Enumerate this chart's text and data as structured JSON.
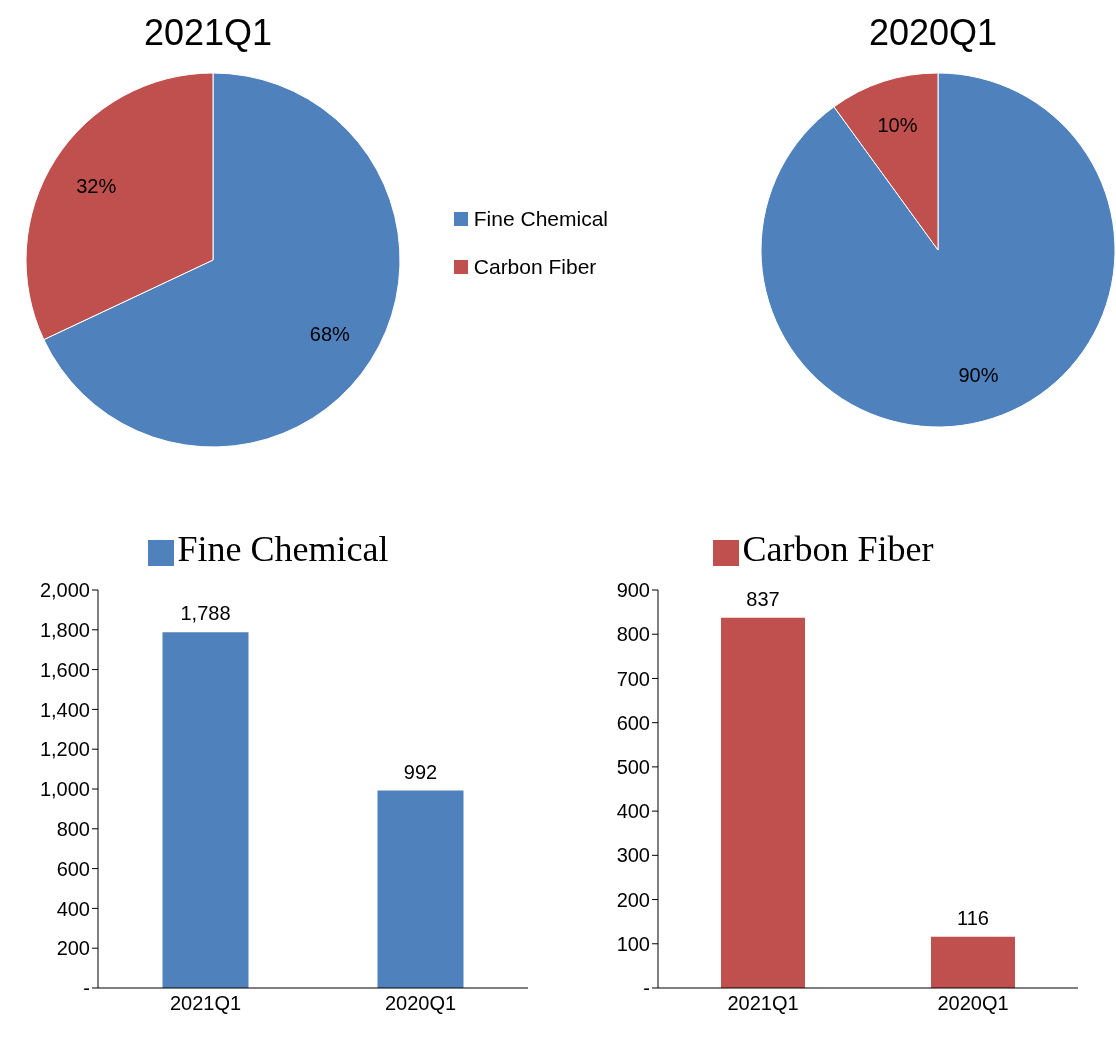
{
  "chart_data": [
    {
      "type": "pie",
      "title": "2021Q1",
      "categories": [
        "Fine Chemical",
        "Carbon Fiber"
      ],
      "values": [
        68,
        32
      ],
      "value_labels": [
        "68%",
        "32%"
      ],
      "colors": [
        "#4f81bd",
        "#c0504d"
      ],
      "legend": "right"
    },
    {
      "type": "pie",
      "title": "2020Q1",
      "categories": [
        null,
        null
      ],
      "values": [
        90,
        10
      ],
      "value_labels": [
        "90%",
        "10%"
      ],
      "colors": [
        "#4f81bd",
        "#c0504d"
      ]
    },
    {
      "type": "bar",
      "categories": [
        "2021Q1",
        "2020Q1"
      ],
      "series": [
        {
          "name": "Fine Chemical",
          "color": "#4f81bd",
          "values": [
            1788,
            992
          ],
          "value_labels": [
            "1,788",
            "992"
          ]
        }
      ],
      "ylim": [
        0,
        2000
      ],
      "yticks": [
        {
          "value": 0,
          "label": "-"
        },
        {
          "value": 200,
          "label": "200"
        },
        {
          "value": 400,
          "label": "400"
        },
        {
          "value": 600,
          "label": "600"
        },
        {
          "value": 800,
          "label": "800"
        },
        {
          "value": 1000,
          "label": "1,000"
        },
        {
          "value": 1200,
          "label": "1,200"
        },
        {
          "value": 1400,
          "label": "1,400"
        },
        {
          "value": 1600,
          "label": "1,600"
        },
        {
          "value": 1800,
          "label": "1,800"
        },
        {
          "value": 2000,
          "label": "2,000"
        }
      ],
      "legend": "top"
    },
    {
      "type": "bar",
      "categories": [
        "2021Q1",
        "2020Q1"
      ],
      "series": [
        {
          "name": "Carbon Fiber",
          "color": "#c0504d",
          "values": [
            837,
            116
          ],
          "value_labels": [
            "837",
            "116"
          ]
        }
      ],
      "ylim": [
        0,
        900
      ],
      "yticks": [
        {
          "value": 0,
          "label": "-"
        },
        100,
        200,
        300,
        400,
        500,
        600,
        700,
        800,
        900
      ],
      "legend": "top"
    }
  ]
}
